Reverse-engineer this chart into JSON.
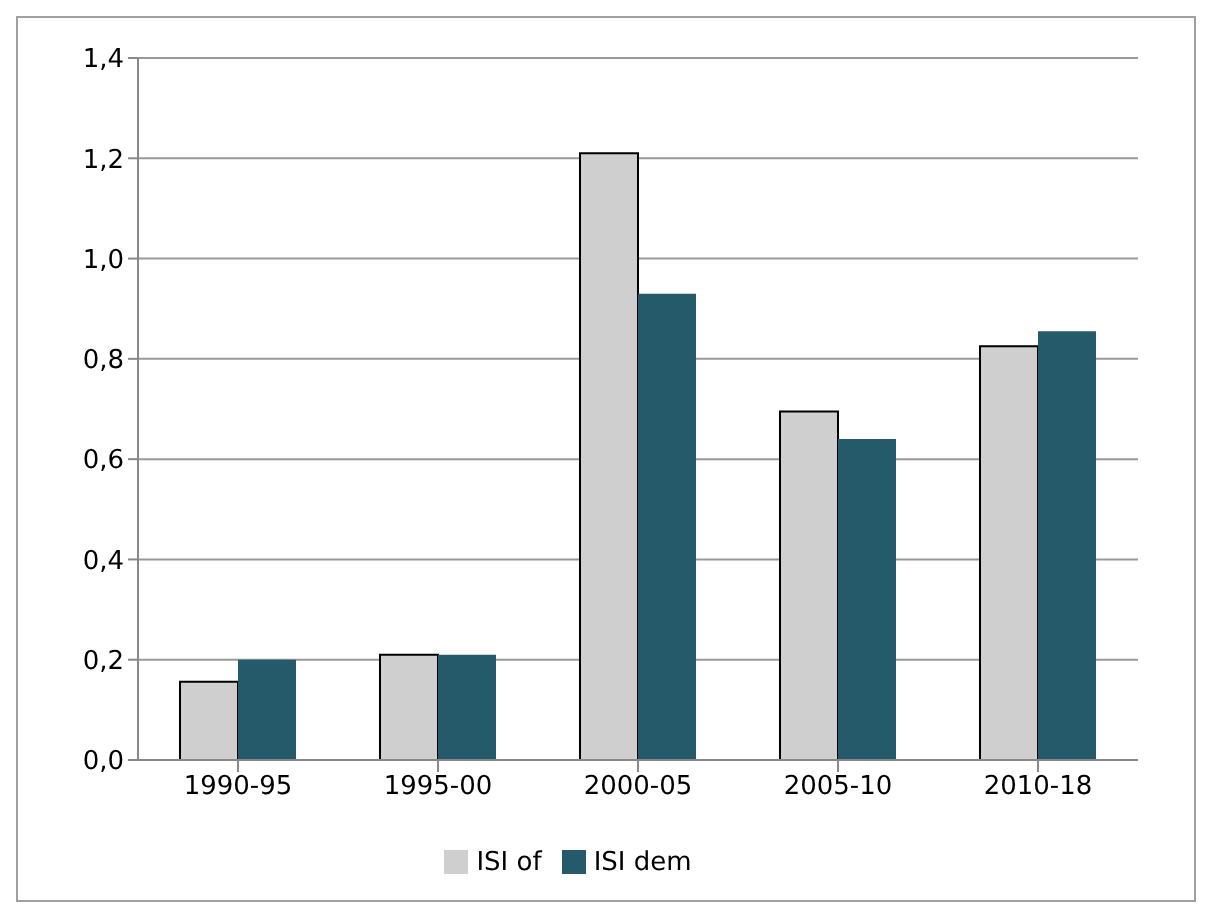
{
  "chart_data": {
    "type": "bar",
    "categories": [
      "1990-95",
      "1995-00",
      "2000-05",
      "2005-10",
      "2010-18"
    ],
    "series": [
      {
        "name": "ISI of",
        "color": "#cfcfcf",
        "values": [
          0.156,
          0.21,
          1.21,
          0.695,
          0.825
        ]
      },
      {
        "name": "ISI dem",
        "color": "#245a69",
        "values": [
          0.2,
          0.21,
          0.93,
          0.64,
          0.855
        ]
      }
    ],
    "ylim": [
      0,
      1.4
    ],
    "yticks": [
      {
        "value": 0,
        "label": "0,0"
      },
      {
        "value": 0.2,
        "label": "0,2"
      },
      {
        "value": 0.4,
        "label": "0,4"
      },
      {
        "value": 0.6,
        "label": "0,6"
      },
      {
        "value": 0.8,
        "label": "0,8"
      },
      {
        "value": 1,
        "label": "1,0"
      },
      {
        "value": 1.2,
        "label": "1,2"
      },
      {
        "value": 1.4,
        "label": "1,4"
      }
    ],
    "grid": "y",
    "legend": "bottom"
  }
}
